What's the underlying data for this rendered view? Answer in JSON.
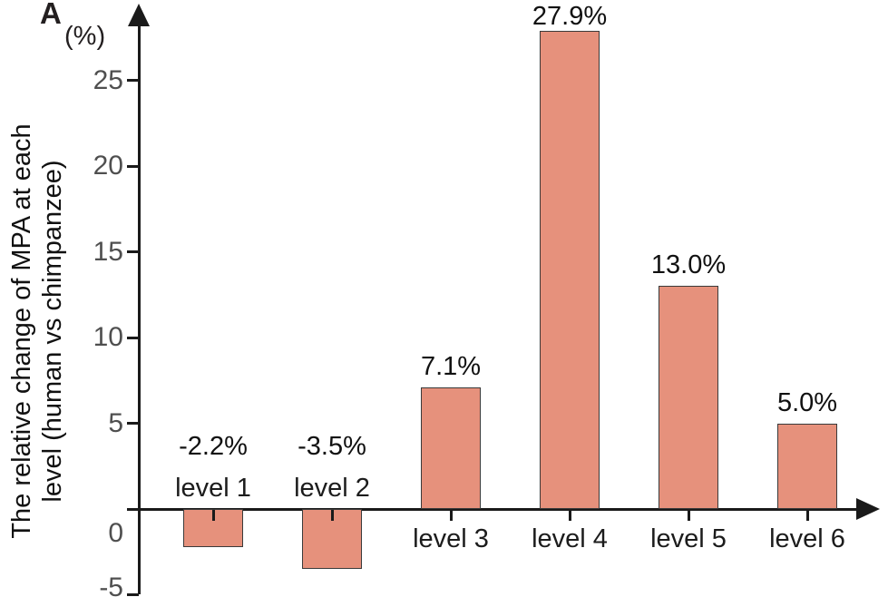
{
  "panel_label": "A",
  "y_axis": {
    "unit_label": "(%)",
    "title_line1": "The relative change of MPA at each",
    "title_line2": "level (human vs chimpanzee)",
    "tick_labels": [
      "25",
      "20",
      "15",
      "10",
      "5",
      "0",
      "-5"
    ]
  },
  "chart_data": {
    "type": "bar",
    "categories": [
      "level 1",
      "level 2",
      "level 3",
      "level 4",
      "level 5",
      "level 6"
    ],
    "values": [
      -2.2,
      -3.5,
      7.1,
      27.9,
      13.0,
      5.0
    ],
    "value_labels": [
      "-2.2%",
      "-3.5%",
      "7.1%",
      "27.9%",
      "13.0%",
      "5.0%"
    ],
    "title": "",
    "xlabel": "",
    "ylabel": "The relative change of MPA at each level (human vs chimpanzee)",
    "y_unit": "(%)",
    "ylim": [
      -5,
      29
    ],
    "yticks": [
      25,
      20,
      15,
      10,
      5,
      0,
      -5
    ],
    "grid": false,
    "legend": "none",
    "bar_color": "#E6917C",
    "bar_border_color": "#3a3a3a",
    "axis_color": "#1a1a1a",
    "tick_label_color": "#4f4f4f"
  }
}
